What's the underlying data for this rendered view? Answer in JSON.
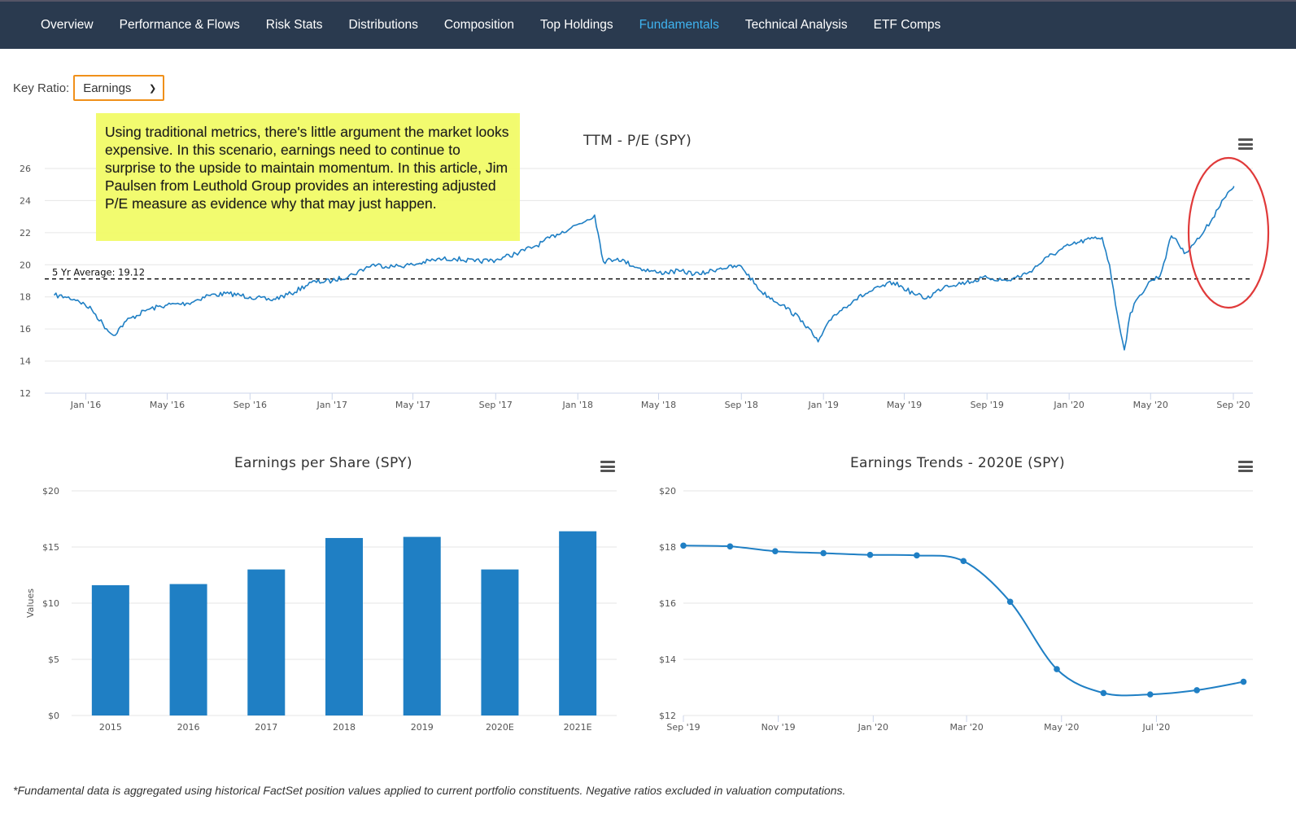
{
  "nav": {
    "tabs": [
      {
        "label": "Overview",
        "active": false
      },
      {
        "label": "Performance & Flows",
        "active": false
      },
      {
        "label": "Risk Stats",
        "active": false
      },
      {
        "label": "Distributions",
        "active": false
      },
      {
        "label": "Composition",
        "active": false
      },
      {
        "label": "Top Holdings",
        "active": false
      },
      {
        "label": "Fundamentals",
        "active": true
      },
      {
        "label": "Technical Analysis",
        "active": false
      },
      {
        "label": "ETF Comps",
        "active": false
      }
    ]
  },
  "key_ratio": {
    "label": "Key Ratio:",
    "selected": "Earnings"
  },
  "note": {
    "text": "Using traditional metrics, there's little argument the market looks expensive. In this scenario, earnings need to continue to surprise to the upside to maintain momentum. In this article, Jim Paulsen from Leuthold Group provides an interesting adjusted P/E measure as evidence why that may just happen."
  },
  "footnote": "*Fundamental data is aggregated using historical FactSet position values applied to current portfolio constituents. Negative ratios excluded in valuation computations.",
  "colors": {
    "nav_bg": "#2a3a4f",
    "active_tab": "#3fb3f0",
    "series": "#1f7fc4",
    "highlight": "#e03a3a",
    "note_bg": "#f2fb6a",
    "select_border": "#f0901a"
  },
  "chart_data": [
    {
      "type": "line",
      "title": "TTM - P/E (SPY)",
      "xlabel": "",
      "ylabel": "",
      "ylim": [
        12,
        26
      ],
      "y_ticks": [
        "12",
        "14",
        "16",
        "18",
        "20",
        "22",
        "24",
        "26"
      ],
      "x_range": [
        "2015-11-01",
        "2020-09-30"
      ],
      "x_ticks": [
        {
          "date": "2016-01-01",
          "label": "Jan '16"
        },
        {
          "date": "2016-05-01",
          "label": "May '16"
        },
        {
          "date": "2016-09-01",
          "label": "Sep '16"
        },
        {
          "date": "2017-01-01",
          "label": "Jan '17"
        },
        {
          "date": "2017-05-01",
          "label": "May '17"
        },
        {
          "date": "2017-09-01",
          "label": "Sep '17"
        },
        {
          "date": "2018-01-01",
          "label": "Jan '18"
        },
        {
          "date": "2018-05-01",
          "label": "May '18"
        },
        {
          "date": "2018-09-01",
          "label": "Sep '18"
        },
        {
          "date": "2019-01-01",
          "label": "Jan '19"
        },
        {
          "date": "2019-05-01",
          "label": "May '19"
        },
        {
          "date": "2019-09-01",
          "label": "Sep '19"
        },
        {
          "date": "2020-01-01",
          "label": "Jan '20"
        },
        {
          "date": "2020-05-01",
          "label": "May '20"
        },
        {
          "date": "2020-09-01",
          "label": "Sep '20"
        }
      ],
      "reference_line": {
        "label": "5 Yr Average: 19.12",
        "value": 19.12
      },
      "grid": true,
      "series": [
        {
          "x": [
            "2015-11-15",
            "2015-12-01",
            "2015-12-20",
            "2016-01-10",
            "2016-02-01",
            "2016-02-11",
            "2016-03-01",
            "2016-04-01",
            "2016-05-01",
            "2016-06-01",
            "2016-07-01",
            "2016-08-01",
            "2016-09-01",
            "2016-10-01",
            "2016-11-01",
            "2016-12-01",
            "2017-01-01",
            "2017-02-01",
            "2017-03-01",
            "2017-04-01",
            "2017-05-01",
            "2017-06-01",
            "2017-07-01",
            "2017-08-01",
            "2017-09-01",
            "2017-10-01",
            "2017-11-01",
            "2017-12-01",
            "2018-01-15",
            "2018-01-26",
            "2018-02-08",
            "2018-03-01",
            "2018-04-01",
            "2018-05-01",
            "2018-06-01",
            "2018-07-01",
            "2018-08-01",
            "2018-09-01",
            "2018-10-01",
            "2018-11-01",
            "2018-12-01",
            "2018-12-24",
            "2019-01-15",
            "2019-02-15",
            "2019-03-15",
            "2019-04-15",
            "2019-05-15",
            "2019-06-03",
            "2019-07-01",
            "2019-08-01",
            "2019-09-01",
            "2019-10-01",
            "2019-11-01",
            "2019-12-01",
            "2020-01-01",
            "2020-02-01",
            "2020-02-19",
            "2020-03-01",
            "2020-03-10",
            "2020-03-23",
            "2020-04-01",
            "2020-04-15",
            "2020-05-01",
            "2020-05-15",
            "2020-06-01",
            "2020-06-08",
            "2020-06-20",
            "2020-07-01",
            "2020-07-15",
            "2020-08-01",
            "2020-08-15",
            "2020-09-01",
            "2020-09-02"
          ],
          "values": [
            18.1,
            18.0,
            17.8,
            17.2,
            16.0,
            15.6,
            16.5,
            17.2,
            17.5,
            17.6,
            18.1,
            18.2,
            18.0,
            17.8,
            18.2,
            18.9,
            19.0,
            19.4,
            20.0,
            19.9,
            20.0,
            20.3,
            20.4,
            20.2,
            20.3,
            20.7,
            21.2,
            21.9,
            22.8,
            23.1,
            20.2,
            20.4,
            19.8,
            19.5,
            19.6,
            19.4,
            19.8,
            19.9,
            18.3,
            17.5,
            16.5,
            15.2,
            16.8,
            17.8,
            18.4,
            18.9,
            18.2,
            17.9,
            18.7,
            18.9,
            19.2,
            19.0,
            19.5,
            20.5,
            21.2,
            21.6,
            21.7,
            20.0,
            17.5,
            14.7,
            17.0,
            18.1,
            19.0,
            19.3,
            21.8,
            21.6,
            20.7,
            21.2,
            21.8,
            22.9,
            24.0,
            24.8,
            24.9
          ]
        }
      ]
    },
    {
      "type": "bar",
      "title": "Earnings per Share (SPY)",
      "xlabel": "",
      "ylabel": "Values",
      "ylim": [
        0,
        20
      ],
      "y_ticks": [
        "$0",
        "$5",
        "$10",
        "$15",
        "$20"
      ],
      "categories": [
        "2015",
        "2016",
        "2017",
        "2018",
        "2019",
        "2020E",
        "2021E"
      ],
      "values": [
        11.6,
        11.7,
        13.0,
        15.8,
        15.9,
        13.0,
        16.4
      ],
      "grid": true
    },
    {
      "type": "line",
      "title": "Earnings Trends - 2020E (SPY)",
      "xlabel": "",
      "ylabel": "",
      "ylim": [
        12,
        20
      ],
      "y_ticks": [
        "$12",
        "$14",
        "$16",
        "$18",
        "$20"
      ],
      "x_range": [
        "2019-09-01",
        "2020-09-01"
      ],
      "x_ticks": [
        {
          "date": "2019-09-01",
          "label": "Sep '19"
        },
        {
          "date": "2019-11-01",
          "label": "Nov '19"
        },
        {
          "date": "2020-01-01",
          "label": "Jan '20"
        },
        {
          "date": "2020-03-01",
          "label": "Mar '20"
        },
        {
          "date": "2020-05-01",
          "label": "May '20"
        },
        {
          "date": "2020-07-01",
          "label": "Jul '20"
        }
      ],
      "grid": true,
      "series": [
        {
          "x": [
            "2019-09-01",
            "2019-10-01",
            "2019-10-30",
            "2019-11-30",
            "2019-12-30",
            "2020-01-29",
            "2020-02-28",
            "2020-03-29",
            "2020-04-28",
            "2020-05-28",
            "2020-06-27",
            "2020-07-27",
            "2020-08-26"
          ],
          "values": [
            18.05,
            18.02,
            17.85,
            17.78,
            17.72,
            17.7,
            17.5,
            16.05,
            13.65,
            12.8,
            12.75,
            12.9,
            13.2
          ]
        }
      ]
    }
  ]
}
